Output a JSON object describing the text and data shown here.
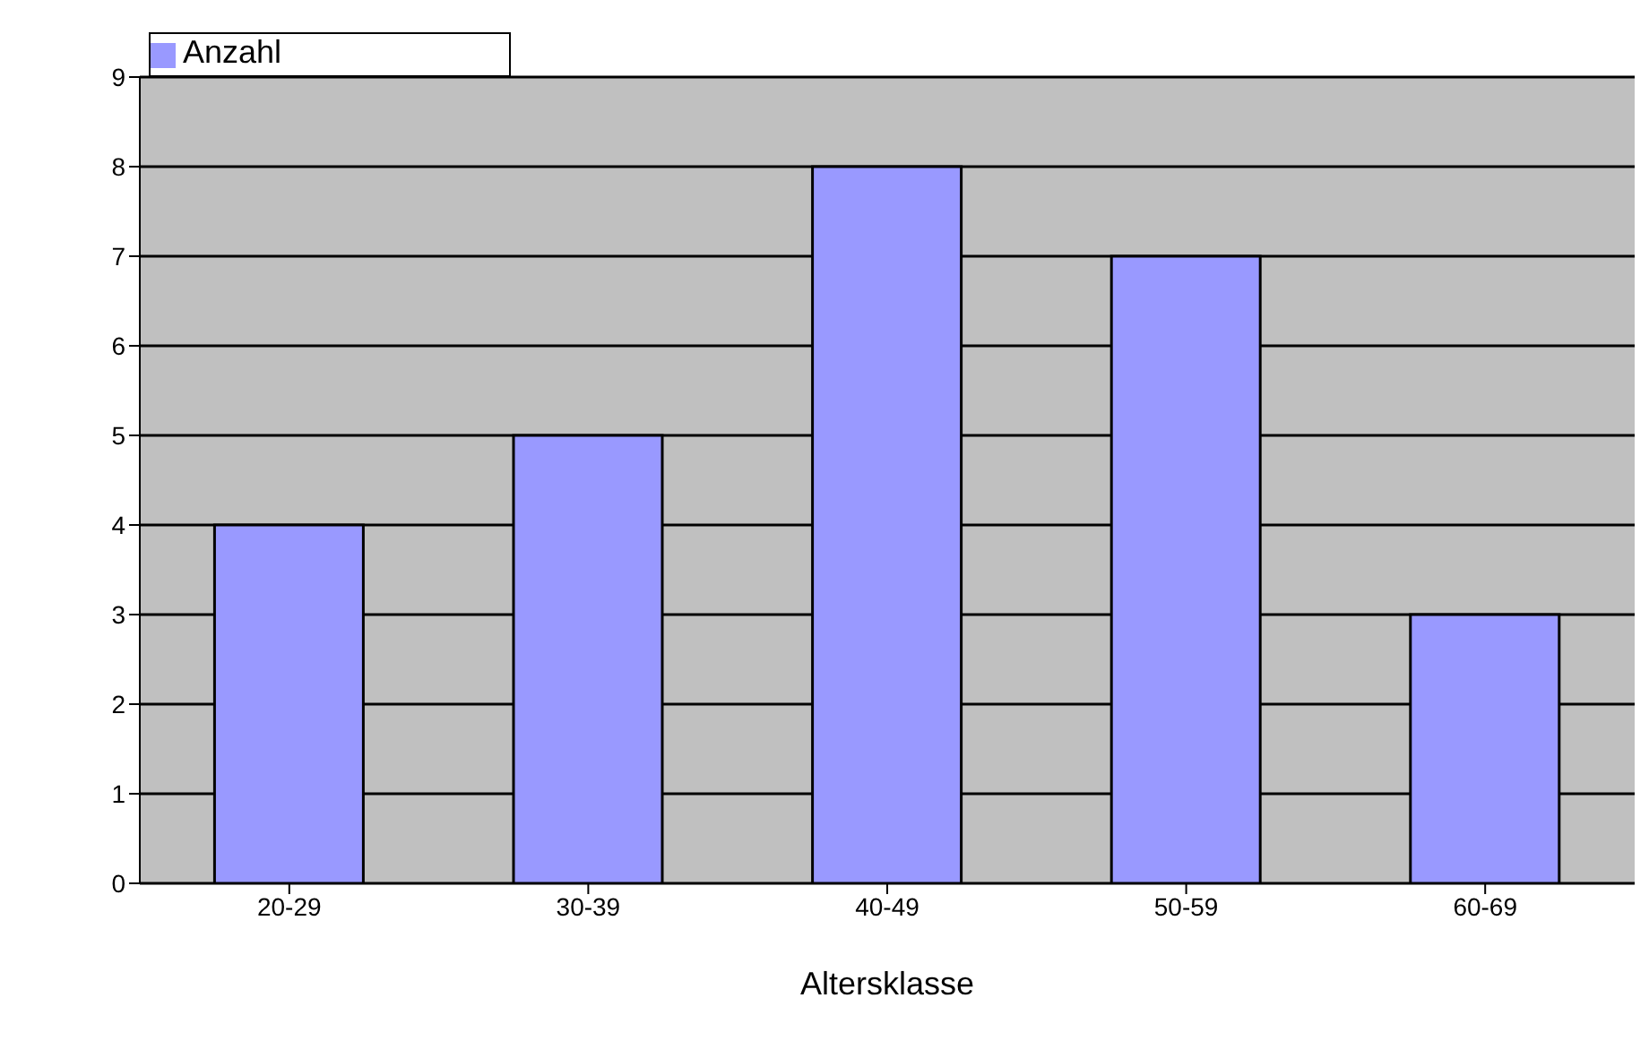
{
  "chart_data": {
    "type": "bar",
    "xlabel": "Altersklasse",
    "categories": [
      "20-29",
      "30-39",
      "40-49",
      "50-59",
      "60-69"
    ],
    "series": [
      {
        "name": "Anzahl",
        "color": "#9999ff",
        "values": [
          4,
          5,
          8,
          7,
          3
        ]
      }
    ],
    "ylim": [
      0,
      9
    ],
    "yticks": [
      0,
      1,
      2,
      3,
      4,
      5,
      6,
      7,
      8,
      9
    ],
    "grid": "y",
    "legend": "top left"
  }
}
